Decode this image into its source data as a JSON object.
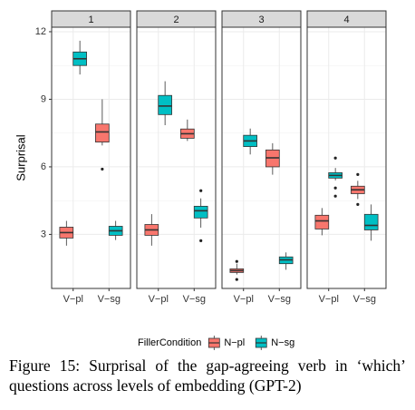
{
  "chart_data": {
    "type": "box",
    "y_label": "Surprisal",
    "panels": [
      "1",
      "2",
      "3",
      "4"
    ],
    "categories": [
      "V−pl",
      "V−sg"
    ],
    "ylim": [
      0.6,
      12.2
    ],
    "yticks": [
      3,
      6,
      9,
      12
    ],
    "grid": true,
    "legend_title": "FillerCondition",
    "legend_position": "bottom",
    "series": [
      {
        "name": "N−pl",
        "color": "#F8766D",
        "boxes": [
          [
            {
              "low": 2.5,
              "q1": 2.84,
              "median": 3.08,
              "q3": 3.32,
              "high": 3.6,
              "outliers": []
            },
            {
              "low": 6.95,
              "q1": 7.1,
              "median": 7.55,
              "q3": 7.9,
              "high": 9.0,
              "outliers": [
                5.9
              ]
            }
          ],
          [
            {
              "low": 2.5,
              "q1": 2.96,
              "median": 3.2,
              "q3": 3.44,
              "high": 3.9,
              "outliers": []
            },
            {
              "low": 7.15,
              "q1": 7.27,
              "median": 7.47,
              "q3": 7.68,
              "high": 8.1,
              "outliers": []
            }
          ],
          [
            {
              "low": 1.22,
              "q1": 1.31,
              "median": 1.39,
              "q3": 1.47,
              "high": 1.7,
              "outliers": [
                1.8,
                1.0
              ]
            },
            {
              "low": 5.65,
              "q1": 6.0,
              "median": 6.4,
              "q3": 6.75,
              "high": 7.05,
              "outliers": []
            }
          ],
          [
            {
              "low": 2.96,
              "q1": 3.24,
              "median": 3.6,
              "q3": 3.85,
              "high": 4.17,
              "outliers": []
            },
            {
              "low": 4.57,
              "q1": 4.81,
              "median": 4.98,
              "q3": 5.14,
              "high": 5.38,
              "outliers": [
                5.66,
                4.33
              ]
            }
          ]
        ]
      },
      {
        "name": "N−sg",
        "color": "#00BFC4",
        "boxes": [
          [
            {
              "low": 10.1,
              "q1": 10.5,
              "median": 10.8,
              "q3": 11.1,
              "high": 11.6,
              "outliers": []
            },
            {
              "low": 2.75,
              "q1": 2.96,
              "median": 3.16,
              "q3": 3.36,
              "high": 3.6,
              "outliers": []
            }
          ],
          [
            {
              "low": 7.85,
              "q1": 8.32,
              "median": 8.7,
              "q3": 9.17,
              "high": 9.8,
              "outliers": []
            },
            {
              "low": 3.3,
              "q1": 3.73,
              "median": 4.05,
              "q3": 4.25,
              "high": 4.6,
              "outliers": [
                4.94,
                2.72
              ]
            }
          ],
          [
            {
              "low": 6.55,
              "q1": 6.9,
              "median": 7.15,
              "q3": 7.4,
              "high": 7.7,
              "outliers": []
            },
            {
              "low": 1.43,
              "q1": 1.7,
              "median": 1.87,
              "q3": 2.0,
              "high": 2.2,
              "outliers": []
            }
          ],
          [
            {
              "low": 5.4,
              "q1": 5.5,
              "median": 5.62,
              "q3": 5.74,
              "high": 5.95,
              "outliers": [
                6.39,
                5.06,
                4.7
              ]
            },
            {
              "low": 2.72,
              "q1": 3.2,
              "median": 3.4,
              "q3": 3.89,
              "high": 4.33,
              "outliers": []
            }
          ]
        ]
      }
    ],
    "caption": "Figure 15: Surprisal of the gap-agreeing verb in ‘which’ questions across levels of embedding (GPT-2)"
  }
}
